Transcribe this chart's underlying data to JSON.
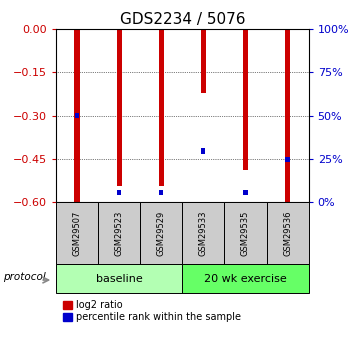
{
  "title": "GDS2234 / 5076",
  "samples": [
    "GSM29507",
    "GSM29523",
    "GSM29529",
    "GSM29533",
    "GSM29535",
    "GSM29536"
  ],
  "log2_ratio": [
    -0.6,
    -0.545,
    -0.545,
    -0.22,
    -0.49,
    -0.6
  ],
  "percentile_rank": [
    0.5,
    0.055,
    0.055,
    0.295,
    0.055,
    0.245
  ],
  "ylim_left": [
    -0.6,
    0.0
  ],
  "yticks_left": [
    0.0,
    -0.15,
    -0.3,
    -0.45,
    -0.6
  ],
  "yticks_right": [
    100,
    75,
    50,
    25,
    0
  ],
  "groups": [
    {
      "label": "baseline",
      "indices": [
        0,
        1,
        2
      ],
      "color": "#b3ffb3"
    },
    {
      "label": "20 wk exercise",
      "indices": [
        3,
        4,
        5
      ],
      "color": "#66ff66"
    }
  ],
  "bar_color_red": "#cc0000",
  "bar_color_blue": "#0000cc",
  "red_bar_width": 0.12,
  "blue_bar_width": 0.1,
  "blue_bar_height": 0.018,
  "title_fontsize": 11,
  "tick_fontsize": 8,
  "left_tick_color": "#cc0000",
  "right_tick_color": "#0000cc",
  "protocol_label": "protocol",
  "legend_red_label": "log2 ratio",
  "legend_blue_label": "percentile rank within the sample",
  "sample_box_color": "#cccccc",
  "group_box_border_color": "#000000"
}
